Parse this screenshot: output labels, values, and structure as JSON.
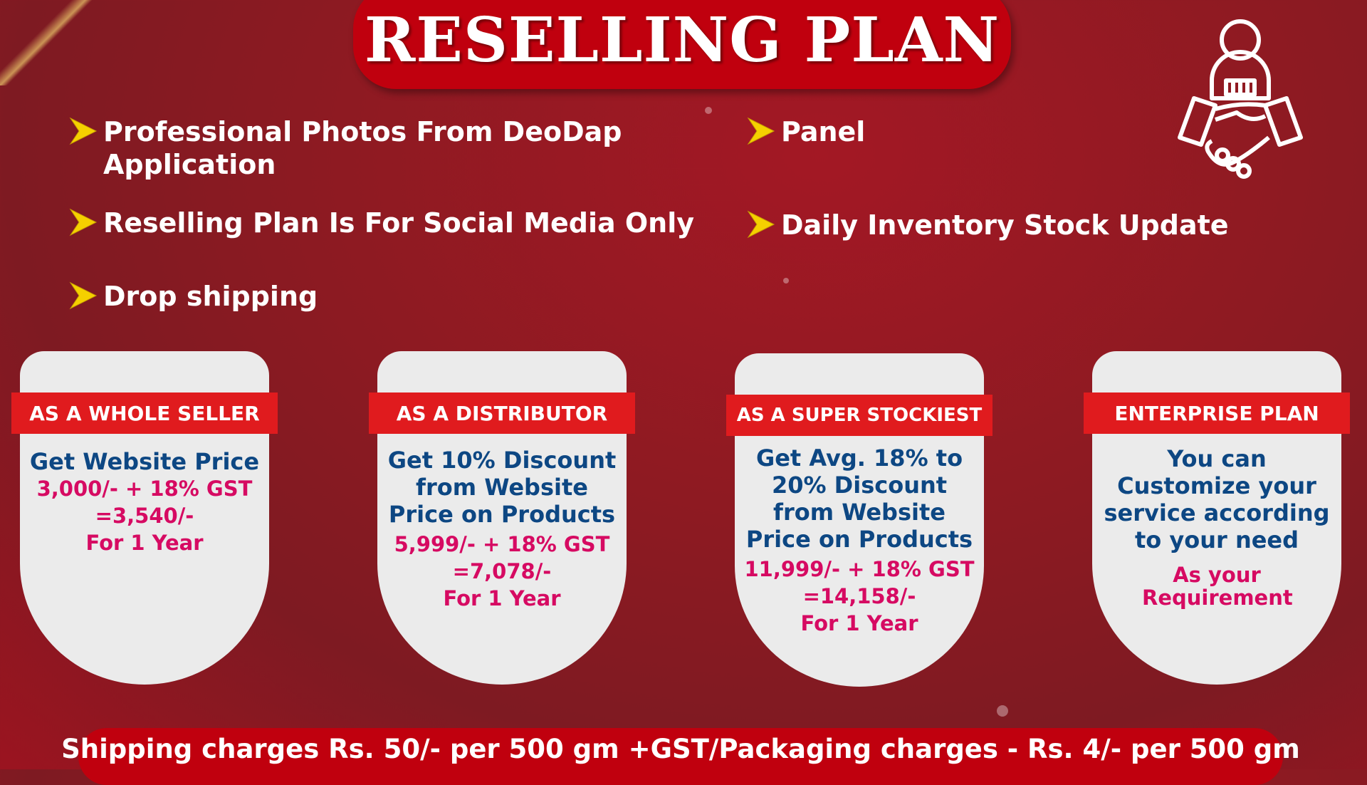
{
  "title": "RESELLING PLAN",
  "features": [
    "Professional Photos From DeoDap Application",
    "Panel",
    "Reselling Plan Is For Social Media Only",
    "Daily Inventory Stock Update",
    "Drop shipping"
  ],
  "plans": [
    {
      "label": "AS A WHOLE SELLER",
      "benefit": "Get Website Price",
      "price": "3,000/- + 18% GST",
      "total": "=3,540/-",
      "term": "For 1 Year"
    },
    {
      "label": "AS A DISTRIBUTOR",
      "benefit": "Get 10% Discount from Website Price on Products",
      "price": "5,999/- + 18% GST",
      "total": "=7,078/-",
      "term": "For 1 Year"
    },
    {
      "label": "AS A SUPER STOCKIEST",
      "benefit": "Get Avg. 18% to 20% Discount from Website Price on Products",
      "price": "11,999/- + 18% GST",
      "total": "=14,158/-",
      "term": "For 1 Year"
    },
    {
      "label": "ENTERPRISE PLAN",
      "benefit": "You can Customize your service according to your need",
      "price": "As your Requirement"
    }
  ],
  "footer": "Shipping charges Rs. 50/- per 500 gm +GST/Packaging charges - Rs. 4/- per 500 gm",
  "colors": {
    "accent": "#c0000e",
    "banner": "#e01b1e",
    "blue": "#0d4783",
    "pink": "#d60a62",
    "arrow": "#f5d000"
  },
  "icons": {
    "bullet": "chevron-arrow-icon",
    "corner": "handshake-person-icon"
  }
}
